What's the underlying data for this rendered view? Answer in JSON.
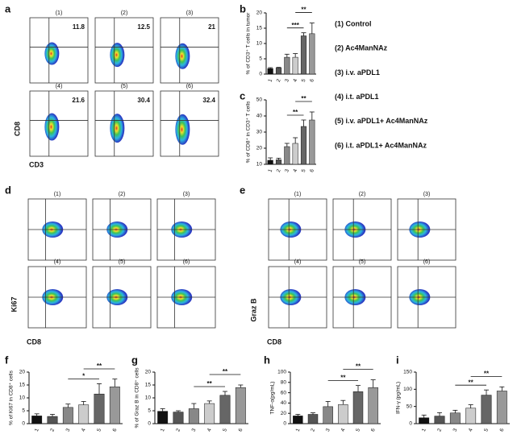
{
  "legend": [
    "(1) Control",
    "(2) Ac4ManNAz",
    "(3) i.v. aPDL1",
    "(4) i.t. aPDL1",
    "(5) i.v. aPDL1+ Ac4ManNAz",
    "(6) i.t. aPDL1+ Ac4ManNAz"
  ],
  "flow_panels": [
    {
      "panel": "a",
      "x_label": "CD3",
      "y_label": "CD8",
      "plots": [
        {
          "title": "(1)",
          "value": "11.8"
        },
        {
          "title": "(2)",
          "value": "12.5"
        },
        {
          "title": "(3)",
          "value": "21"
        },
        {
          "title": "(4)",
          "value": "21.6"
        },
        {
          "title": "(5)",
          "value": "30.4"
        },
        {
          "title": "(6)",
          "value": "32.4"
        }
      ]
    },
    {
      "panel": "d",
      "x_label": "CD8",
      "y_label": "Ki67",
      "plots": [
        {
          "title": "(1)"
        },
        {
          "title": "(2)"
        },
        {
          "title": "(3)"
        },
        {
          "title": "(4)"
        },
        {
          "title": "(5)"
        },
        {
          "title": "(6)"
        }
      ]
    },
    {
      "panel": "e",
      "x_label": "CD8",
      "y_label": "Graz B",
      "plots": [
        {
          "title": "(1)"
        },
        {
          "title": "(2)"
        },
        {
          "title": "(3)"
        },
        {
          "title": "(4)"
        },
        {
          "title": "(5)"
        },
        {
          "title": "(6)"
        }
      ]
    }
  ],
  "chart_data": [
    {
      "type": "bar",
      "panel": "b",
      "y_label": "% of CD3⁺ T cells in tumor",
      "categories": [
        "1",
        "2",
        "3",
        "4",
        "5",
        "6"
      ],
      "values": [
        1.8,
        2.0,
        5.5,
        5.5,
        12.5,
        13.2
      ],
      "errors": [
        0.3,
        0.2,
        1.0,
        1.2,
        1.0,
        3.5
      ],
      "colors": [
        "#111111",
        "#555555",
        "#888888",
        "#cccccc",
        "#666666",
        "#999999"
      ],
      "ylim": [
        0,
        20
      ],
      "yticks": [
        0,
        5,
        10,
        15,
        20
      ],
      "annotations": [
        {
          "text": "***",
          "between": [
            "3",
            "5"
          ]
        },
        {
          "text": "**",
          "between": [
            "4",
            "6"
          ]
        }
      ]
    },
    {
      "type": "bar",
      "panel": "c",
      "y_label": "% of CD8⁺ in CD3⁺ T cells",
      "categories": [
        "1",
        "2",
        "3",
        "4",
        "5",
        "6"
      ],
      "values": [
        12.5,
        12.8,
        21,
        23,
        33.5,
        37.5
      ],
      "errors": [
        1.5,
        1.0,
        2.0,
        3.5,
        4.0,
        5.0
      ],
      "colors": [
        "#111111",
        "#555555",
        "#888888",
        "#cccccc",
        "#666666",
        "#999999"
      ],
      "ylim": [
        10,
        50
      ],
      "yticks": [
        10,
        20,
        30,
        40,
        50
      ],
      "annotations": [
        {
          "text": "**",
          "between": [
            "3",
            "5"
          ]
        },
        {
          "text": "**",
          "between": [
            "4",
            "6"
          ]
        }
      ]
    },
    {
      "type": "bar",
      "panel": "f",
      "y_label": "% of  Ki67 in CD8⁺ cells",
      "categories": [
        "1",
        "2",
        "3",
        "4",
        "5",
        "6"
      ],
      "values": [
        3.0,
        2.8,
        6.3,
        7.3,
        11.5,
        14.3
      ],
      "errors": [
        0.8,
        0.8,
        1.3,
        1.3,
        4.0,
        3.0
      ],
      "colors": [
        "#111111",
        "#555555",
        "#888888",
        "#cccccc",
        "#666666",
        "#999999"
      ],
      "ylim": [
        0,
        20
      ],
      "yticks": [
        0,
        5,
        10,
        15,
        20
      ],
      "annotations": [
        {
          "text": "*",
          "between": [
            "3",
            "5"
          ]
        },
        {
          "text": "**",
          "between": [
            "4",
            "6"
          ]
        }
      ]
    },
    {
      "type": "bar",
      "panel": "g",
      "y_label": "% of Graz B in CD8⁺ cells",
      "categories": [
        "1",
        "2",
        "3",
        "4",
        "5",
        "6"
      ],
      "values": [
        4.8,
        4.5,
        5.8,
        7.8,
        11.0,
        14.0
      ],
      "errors": [
        1.0,
        0.5,
        2.0,
        1.0,
        1.5,
        1.0
      ],
      "colors": [
        "#111111",
        "#555555",
        "#888888",
        "#cccccc",
        "#666666",
        "#999999"
      ],
      "ylim": [
        0,
        20
      ],
      "yticks": [
        0,
        5,
        10,
        15,
        20
      ],
      "annotations": [
        {
          "text": "**",
          "between": [
            "3",
            "5"
          ]
        },
        {
          "text": "**",
          "between": [
            "4",
            "6"
          ]
        }
      ]
    },
    {
      "type": "bar",
      "panel": "h",
      "y_label": "TNF-α(pg/mL)",
      "categories": [
        "1",
        "2",
        "3",
        "4",
        "5",
        "6"
      ],
      "values": [
        15,
        18,
        33,
        37,
        62,
        70
      ],
      "errors": [
        3,
        3,
        10,
        8,
        12,
        15
      ],
      "colors": [
        "#111111",
        "#555555",
        "#888888",
        "#cccccc",
        "#666666",
        "#999999"
      ],
      "ylim": [
        0,
        100
      ],
      "yticks": [
        0,
        20,
        40,
        60,
        80,
        100
      ],
      "annotations": [
        {
          "text": "**",
          "between": [
            "3",
            "5"
          ]
        },
        {
          "text": "**",
          "between": [
            "4",
            "6"
          ]
        }
      ]
    },
    {
      "type": "bar",
      "panel": "i",
      "y_label": "IFN-γ (pg/mL)",
      "categories": [
        "1",
        "2",
        "3",
        "4",
        "5",
        "6"
      ],
      "values": [
        17,
        22,
        31,
        45,
        83,
        95
      ],
      "errors": [
        8,
        10,
        8,
        10,
        15,
        12
      ],
      "colors": [
        "#111111",
        "#555555",
        "#888888",
        "#cccccc",
        "#666666",
        "#999999"
      ],
      "ylim": [
        0,
        150
      ],
      "yticks": [
        0,
        50,
        100,
        150
      ],
      "annotations": [
        {
          "text": "**",
          "between": [
            "3",
            "5"
          ]
        },
        {
          "text": "**",
          "between": [
            "4",
            "6"
          ]
        }
      ]
    }
  ]
}
